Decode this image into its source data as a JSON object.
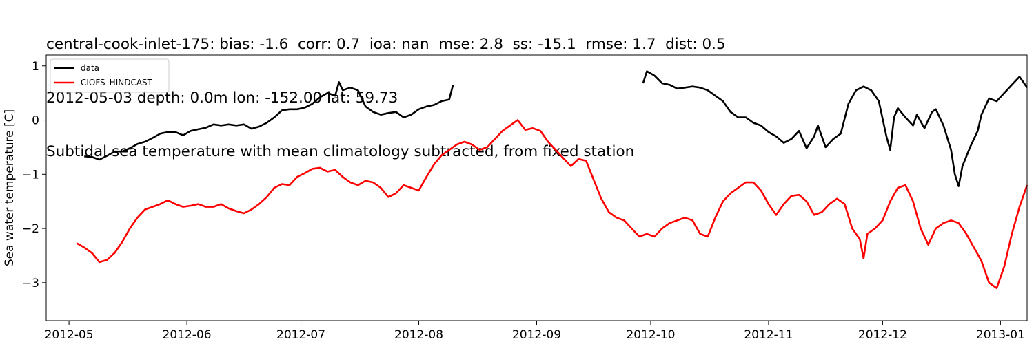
{
  "title": {
    "line1": "central-cook-inlet-175: bias: -1.6  corr: 0.7  ioa: nan  mse: 2.8  ss: -15.1  rmse: 1.7  dist: 0.5",
    "line2": "2012-05-03 depth: 0.0m lon: -152.00 lat: 59.73",
    "line3": "Subtidal sea temperature with mean climatology subtracted, from fixed station"
  },
  "chart_data": {
    "type": "line",
    "ylabel": "Sea water temperature [C]",
    "xlabel": "",
    "xlim": [
      "2012-04-25",
      "2013-01-08"
    ],
    "ylim": [
      -3.7,
      1.2
    ],
    "x_ticks": [
      "2012-05-01",
      "2012-06-01",
      "2012-07-01",
      "2012-08-01",
      "2012-09-01",
      "2012-10-01",
      "2012-11-01",
      "2012-12-01",
      "2013-01-01"
    ],
    "x_tick_labels": [
      "2012-05",
      "2012-06",
      "2012-07",
      "2012-08",
      "2012-09",
      "2012-10",
      "2012-11",
      "2012-12",
      "2013-01"
    ],
    "y_ticks": [
      1,
      0,
      -1,
      -2,
      -3
    ],
    "y_tick_labels": [
      "1",
      "0",
      "−1",
      "−2",
      "−3"
    ],
    "grid": false,
    "legend_position": "top-left",
    "series": [
      {
        "name": "data",
        "color": "#000000",
        "segments": [
          [
            [
              "2012-05-05",
              -0.67
            ],
            [
              "2012-05-07",
              -0.68
            ],
            [
              "2012-05-09",
              -0.73
            ],
            [
              "2012-05-11",
              -0.66
            ],
            [
              "2012-05-13",
              -0.58
            ],
            [
              "2012-05-15",
              -0.58
            ],
            [
              "2012-05-17",
              -0.52
            ],
            [
              "2012-05-19",
              -0.44
            ],
            [
              "2012-05-21",
              -0.4
            ],
            [
              "2012-05-23",
              -0.33
            ],
            [
              "2012-05-25",
              -0.25
            ],
            [
              "2012-05-27",
              -0.22
            ],
            [
              "2012-05-29",
              -0.22
            ],
            [
              "2012-05-31",
              -0.28
            ],
            [
              "2012-06-02",
              -0.2
            ],
            [
              "2012-06-04",
              -0.17
            ],
            [
              "2012-06-06",
              -0.14
            ],
            [
              "2012-06-08",
              -0.08
            ],
            [
              "2012-06-10",
              -0.1
            ],
            [
              "2012-06-12",
              -0.08
            ],
            [
              "2012-06-14",
              -0.1
            ],
            [
              "2012-06-16",
              -0.08
            ],
            [
              "2012-06-18",
              -0.16
            ],
            [
              "2012-06-20",
              -0.12
            ],
            [
              "2012-06-22",
              -0.05
            ],
            [
              "2012-06-24",
              0.05
            ],
            [
              "2012-06-26",
              0.18
            ],
            [
              "2012-06-28",
              0.2
            ],
            [
              "2012-06-30",
              0.2
            ],
            [
              "2012-07-02",
              0.23
            ],
            [
              "2012-07-04",
              0.3
            ],
            [
              "2012-07-06",
              0.42
            ],
            [
              "2012-07-08",
              0.5
            ],
            [
              "2012-07-10",
              0.45
            ],
            [
              "2012-07-11",
              0.7
            ],
            [
              "2012-07-12",
              0.55
            ],
            [
              "2012-07-14",
              0.6
            ],
            [
              "2012-07-16",
              0.55
            ],
            [
              "2012-07-18",
              0.25
            ],
            [
              "2012-07-20",
              0.15
            ],
            [
              "2012-07-22",
              0.1
            ],
            [
              "2012-07-24",
              0.13
            ],
            [
              "2012-07-26",
              0.15
            ],
            [
              "2012-07-28",
              0.05
            ],
            [
              "2012-07-30",
              0.1
            ],
            [
              "2012-08-01",
              0.2
            ],
            [
              "2012-08-03",
              0.25
            ],
            [
              "2012-08-05",
              0.28
            ],
            [
              "2012-08-07",
              0.35
            ],
            [
              "2012-08-09",
              0.38
            ],
            [
              "2012-08-10",
              0.65
            ]
          ],
          [
            [
              "2012-09-29",
              0.68
            ],
            [
              "2012-09-30",
              0.9
            ],
            [
              "2012-10-02",
              0.82
            ],
            [
              "2012-10-04",
              0.68
            ],
            [
              "2012-10-06",
              0.65
            ],
            [
              "2012-10-08",
              0.58
            ],
            [
              "2012-10-10",
              0.6
            ],
            [
              "2012-10-12",
              0.62
            ],
            [
              "2012-10-14",
              0.6
            ],
            [
              "2012-10-16",
              0.55
            ],
            [
              "2012-10-18",
              0.45
            ],
            [
              "2012-10-20",
              0.35
            ],
            [
              "2012-10-22",
              0.15
            ],
            [
              "2012-10-24",
              0.05
            ],
            [
              "2012-10-26",
              0.05
            ],
            [
              "2012-10-28",
              -0.05
            ],
            [
              "2012-10-30",
              -0.1
            ],
            [
              "2012-11-01",
              -0.22
            ],
            [
              "2012-11-03",
              -0.3
            ],
            [
              "2012-11-05",
              -0.42
            ],
            [
              "2012-11-07",
              -0.35
            ],
            [
              "2012-11-09",
              -0.2
            ],
            [
              "2012-11-11",
              -0.52
            ],
            [
              "2012-11-13",
              -0.3
            ],
            [
              "2012-11-14",
              -0.1
            ],
            [
              "2012-11-16",
              -0.5
            ],
            [
              "2012-11-18",
              -0.35
            ],
            [
              "2012-11-20",
              -0.25
            ],
            [
              "2012-11-22",
              0.3
            ],
            [
              "2012-11-24",
              0.55
            ],
            [
              "2012-11-26",
              0.62
            ],
            [
              "2012-11-28",
              0.55
            ],
            [
              "2012-11-30",
              0.35
            ],
            [
              "2012-12-02",
              -0.3
            ],
            [
              "2012-12-03",
              -0.55
            ],
            [
              "2012-12-04",
              0.05
            ],
            [
              "2012-12-05",
              0.22
            ],
            [
              "2012-12-07",
              0.05
            ],
            [
              "2012-12-09",
              -0.1
            ],
            [
              "2012-12-10",
              0.1
            ],
            [
              "2012-12-12",
              -0.15
            ],
            [
              "2012-12-14",
              0.15
            ],
            [
              "2012-12-15",
              0.2
            ],
            [
              "2012-12-17",
              -0.1
            ],
            [
              "2012-12-19",
              -0.55
            ],
            [
              "2012-12-20",
              -1.0
            ],
            [
              "2012-12-21",
              -1.22
            ],
            [
              "2012-12-22",
              -0.85
            ],
            [
              "2012-12-24",
              -0.5
            ],
            [
              "2012-12-26",
              -0.2
            ],
            [
              "2012-12-27",
              0.1
            ],
            [
              "2012-12-29",
              0.4
            ],
            [
              "2012-12-31",
              0.35
            ],
            [
              "2013-01-02",
              0.5
            ],
            [
              "2013-01-04",
              0.65
            ],
            [
              "2013-01-06",
              0.8
            ],
            [
              "2013-01-08",
              0.6
            ]
          ]
        ]
      },
      {
        "name": "CIOFS_HINDCAST",
        "color": "#ff0000",
        "segments": [
          [
            [
              "2012-05-03",
              -2.27
            ],
            [
              "2012-05-05",
              -2.35
            ],
            [
              "2012-05-07",
              -2.45
            ],
            [
              "2012-05-09",
              -2.62
            ],
            [
              "2012-05-11",
              -2.58
            ],
            [
              "2012-05-13",
              -2.45
            ],
            [
              "2012-05-15",
              -2.25
            ],
            [
              "2012-05-17",
              -2.0
            ],
            [
              "2012-05-19",
              -1.8
            ],
            [
              "2012-05-21",
              -1.65
            ],
            [
              "2012-05-23",
              -1.6
            ],
            [
              "2012-05-25",
              -1.55
            ],
            [
              "2012-05-27",
              -1.48
            ],
            [
              "2012-05-29",
              -1.55
            ],
            [
              "2012-05-31",
              -1.6
            ],
            [
              "2012-06-02",
              -1.58
            ],
            [
              "2012-06-04",
              -1.55
            ],
            [
              "2012-06-06",
              -1.6
            ],
            [
              "2012-06-08",
              -1.6
            ],
            [
              "2012-06-10",
              -1.55
            ],
            [
              "2012-06-12",
              -1.63
            ],
            [
              "2012-06-14",
              -1.68
            ],
            [
              "2012-06-16",
              -1.72
            ],
            [
              "2012-06-18",
              -1.65
            ],
            [
              "2012-06-20",
              -1.55
            ],
            [
              "2012-06-22",
              -1.42
            ],
            [
              "2012-06-24",
              -1.25
            ],
            [
              "2012-06-26",
              -1.18
            ],
            [
              "2012-06-28",
              -1.2
            ],
            [
              "2012-06-30",
              -1.05
            ],
            [
              "2012-07-02",
              -0.98
            ],
            [
              "2012-07-04",
              -0.9
            ],
            [
              "2012-07-06",
              -0.88
            ],
            [
              "2012-07-08",
              -0.95
            ],
            [
              "2012-07-10",
              -0.92
            ],
            [
              "2012-07-12",
              -1.05
            ],
            [
              "2012-07-14",
              -1.15
            ],
            [
              "2012-07-16",
              -1.2
            ],
            [
              "2012-07-18",
              -1.12
            ],
            [
              "2012-07-20",
              -1.15
            ],
            [
              "2012-07-22",
              -1.25
            ],
            [
              "2012-07-24",
              -1.42
            ],
            [
              "2012-07-26",
              -1.35
            ],
            [
              "2012-07-28",
              -1.2
            ],
            [
              "2012-07-30",
              -1.25
            ],
            [
              "2012-08-01",
              -1.3
            ],
            [
              "2012-08-03",
              -1.05
            ],
            [
              "2012-08-05",
              -0.82
            ],
            [
              "2012-08-07",
              -0.65
            ],
            [
              "2012-08-09",
              -0.55
            ],
            [
              "2012-08-11",
              -0.45
            ],
            [
              "2012-08-13",
              -0.4
            ],
            [
              "2012-08-15",
              -0.45
            ],
            [
              "2012-08-17",
              -0.55
            ],
            [
              "2012-08-19",
              -0.5
            ],
            [
              "2012-08-21",
              -0.35
            ],
            [
              "2012-08-23",
              -0.2
            ],
            [
              "2012-08-25",
              -0.1
            ],
            [
              "2012-08-27",
              0.0
            ],
            [
              "2012-08-29",
              -0.18
            ],
            [
              "2012-08-31",
              -0.15
            ],
            [
              "2012-09-02",
              -0.2
            ],
            [
              "2012-09-04",
              -0.4
            ],
            [
              "2012-09-06",
              -0.55
            ],
            [
              "2012-09-08",
              -0.7
            ],
            [
              "2012-09-10",
              -0.85
            ],
            [
              "2012-09-12",
              -0.72
            ],
            [
              "2012-09-14",
              -0.75
            ],
            [
              "2012-09-16",
              -1.1
            ],
            [
              "2012-09-18",
              -1.45
            ],
            [
              "2012-09-20",
              -1.7
            ],
            [
              "2012-09-22",
              -1.8
            ],
            [
              "2012-09-24",
              -1.85
            ],
            [
              "2012-09-26",
              -2.0
            ],
            [
              "2012-09-28",
              -2.15
            ],
            [
              "2012-09-30",
              -2.1
            ],
            [
              "2012-10-02",
              -2.15
            ],
            [
              "2012-10-04",
              -2.0
            ],
            [
              "2012-10-06",
              -1.9
            ],
            [
              "2012-10-08",
              -1.85
            ],
            [
              "2012-10-10",
              -1.8
            ],
            [
              "2012-10-12",
              -1.85
            ],
            [
              "2012-10-14",
              -2.1
            ],
            [
              "2012-10-16",
              -2.15
            ],
            [
              "2012-10-18",
              -1.8
            ],
            [
              "2012-10-20",
              -1.5
            ],
            [
              "2012-10-22",
              -1.35
            ],
            [
              "2012-10-24",
              -1.25
            ],
            [
              "2012-10-26",
              -1.15
            ],
            [
              "2012-10-28",
              -1.15
            ],
            [
              "2012-10-30",
              -1.3
            ],
            [
              "2012-11-01",
              -1.55
            ],
            [
              "2012-11-03",
              -1.75
            ],
            [
              "2012-11-05",
              -1.55
            ],
            [
              "2012-11-07",
              -1.4
            ],
            [
              "2012-11-09",
              -1.38
            ],
            [
              "2012-11-11",
              -1.5
            ],
            [
              "2012-11-13",
              -1.75
            ],
            [
              "2012-11-15",
              -1.7
            ],
            [
              "2012-11-17",
              -1.55
            ],
            [
              "2012-11-19",
              -1.45
            ],
            [
              "2012-11-21",
              -1.55
            ],
            [
              "2012-11-23",
              -2.0
            ],
            [
              "2012-11-25",
              -2.2
            ],
            [
              "2012-11-26",
              -2.55
            ],
            [
              "2012-11-27",
              -2.1
            ],
            [
              "2012-11-29",
              -2.0
            ],
            [
              "2012-12-01",
              -1.85
            ],
            [
              "2012-12-03",
              -1.5
            ],
            [
              "2012-12-05",
              -1.25
            ],
            [
              "2012-12-07",
              -1.2
            ],
            [
              "2012-12-09",
              -1.5
            ],
            [
              "2012-12-11",
              -2.0
            ],
            [
              "2012-12-13",
              -2.3
            ],
            [
              "2012-12-15",
              -2.0
            ],
            [
              "2012-12-17",
              -1.9
            ],
            [
              "2012-12-19",
              -1.85
            ],
            [
              "2012-12-21",
              -1.9
            ],
            [
              "2012-12-23",
              -2.1
            ],
            [
              "2012-12-25",
              -2.35
            ],
            [
              "2012-12-27",
              -2.6
            ],
            [
              "2012-12-29",
              -3.0
            ],
            [
              "2012-12-31",
              -3.1
            ],
            [
              "2013-01-02",
              -2.7
            ],
            [
              "2013-01-04",
              -2.1
            ],
            [
              "2013-01-06",
              -1.6
            ],
            [
              "2013-01-08",
              -1.2
            ]
          ]
        ]
      }
    ]
  }
}
